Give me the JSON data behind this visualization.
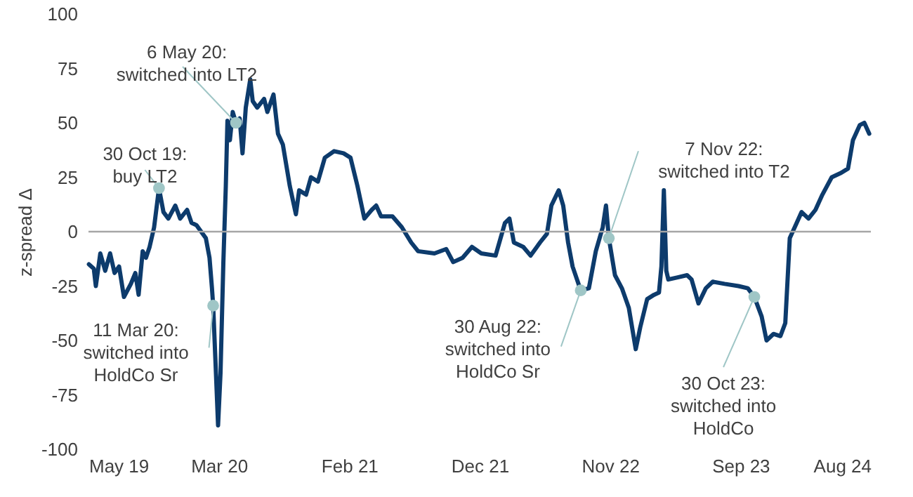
{
  "chart_data": {
    "type": "line",
    "ylabel": "z-spread Δ",
    "line_style": "solid",
    "marker": "none",
    "grid": false,
    "xlim": [
      "2019-05-10",
      "2024-08-11"
    ],
    "xticks": [
      {
        "value": "2019-05-10",
        "label": "May 19"
      },
      {
        "value": "2020-03-25",
        "label": "Mar 20"
      },
      {
        "value": "2021-02-08",
        "label": "Feb 21"
      },
      {
        "value": "2021-12-25",
        "label": "Dec 21"
      },
      {
        "value": "2022-11-10",
        "label": "Nov 22"
      },
      {
        "value": "2023-09-26",
        "label": "Sep 23"
      },
      {
        "value": "2024-08-11",
        "label": "Aug 24"
      }
    ],
    "ylim": [
      -100,
      100
    ],
    "yticks": [
      -100,
      -75,
      -50,
      -25,
      0,
      25,
      50,
      75,
      100
    ],
    "ref_lines": [
      {
        "axis": "y",
        "value": 0,
        "color": "#a6a6a6"
      }
    ],
    "series": [
      {
        "color": "#0d3b6c",
        "x": [
          "2019-05-11",
          "2019-05-23",
          "2019-05-28",
          "2019-06-08",
          "2019-06-20",
          "2019-07-02",
          "2019-07-13",
          "2019-07-24",
          "2019-08-05",
          "2019-08-22",
          "2019-09-02",
          "2019-09-10",
          "2019-09-20",
          "2019-09-28",
          "2019-10-07",
          "2019-10-18",
          "2019-10-30",
          "2019-11-10",
          "2019-11-22",
          "2019-12-09",
          "2019-12-21",
          "2020-01-07",
          "2020-01-18",
          "2020-01-30",
          "2020-02-22",
          "2020-03-02",
          "2020-03-08",
          "2020-03-11",
          "2020-03-23",
          "2020-03-29",
          "2020-04-05",
          "2020-04-11",
          "2020-04-15",
          "2020-04-21",
          "2020-04-28",
          "2020-05-06",
          "2020-05-15",
          "2020-05-22",
          "2020-05-30",
          "2020-06-10",
          "2020-06-16",
          "2020-06-27",
          "2020-07-14",
          "2020-07-22",
          "2020-08-06",
          "2020-08-17",
          "2020-08-29",
          "2020-09-15",
          "2020-09-30",
          "2020-10-08",
          "2020-10-25",
          "2020-11-06",
          "2020-11-23",
          "2020-12-10",
          "2021-01-02",
          "2021-01-25",
          "2021-02-11",
          "2021-02-28",
          "2021-03-17",
          "2021-04-04",
          "2021-04-15",
          "2021-04-27",
          "2021-05-25",
          "2021-06-17",
          "2021-07-10",
          "2021-07-27",
          "2021-09-05",
          "2021-10-04",
          "2021-10-21",
          "2021-11-13",
          "2021-12-06",
          "2021-12-29",
          "2022-02-02",
          "2022-02-25",
          "2022-03-08",
          "2022-03-19",
          "2022-04-11",
          "2022-04-29",
          "2022-05-22",
          "2022-06-08",
          "2022-06-19",
          "2022-07-07",
          "2022-07-18",
          "2022-07-30",
          "2022-08-10",
          "2022-08-30",
          "2022-09-19",
          "2022-10-06",
          "2022-10-23",
          "2022-10-31",
          "2022-11-07",
          "2022-11-22",
          "2022-12-09",
          "2022-12-26",
          "2023-01-12",
          "2023-01-23",
          "2023-02-09",
          "2023-02-26",
          "2023-03-10",
          "2023-03-16",
          "2023-03-22",
          "2023-03-28",
          "2023-04-02",
          "2023-04-25",
          "2023-05-18",
          "2023-05-29",
          "2023-06-15",
          "2023-07-03",
          "2023-07-20",
          "2023-08-18",
          "2023-09-21",
          "2023-10-14",
          "2023-10-30",
          "2023-11-17",
          "2023-11-29",
          "2023-12-16",
          "2024-01-02",
          "2024-01-14",
          "2024-01-25",
          "2024-02-11",
          "2024-02-23",
          "2024-03-11",
          "2024-03-28",
          "2024-04-14",
          "2024-05-07",
          "2024-05-30",
          "2024-06-16",
          "2024-06-28",
          "2024-07-15",
          "2024-07-26",
          "2024-08-07"
        ],
        "values": [
          -15,
          -17,
          -25,
          -10,
          -18,
          -10,
          -19,
          -16,
          -30,
          -24,
          -19,
          -29,
          -9,
          -12,
          -7,
          2,
          20,
          9,
          6,
          12,
          6,
          10,
          4,
          3,
          -3,
          -12,
          -26,
          -34,
          -89,
          -65,
          -14,
          21,
          51,
          42,
          55,
          50,
          52,
          36,
          57,
          70,
          60,
          57,
          61,
          55,
          63,
          45,
          40,
          21,
          8,
          19,
          17,
          25,
          23,
          34,
          37,
          36,
          34,
          21,
          6,
          10,
          12,
          7,
          7,
          2,
          -5,
          -9,
          -10,
          -8,
          -14,
          -12,
          -7,
          -10,
          -11,
          4,
          6,
          -5,
          -7,
          -11,
          -5,
          -1,
          12,
          19,
          12,
          -5,
          -16,
          -27,
          -26,
          -9,
          2,
          12,
          -3,
          -20,
          -26,
          -35,
          -54,
          -44,
          -31,
          -29,
          -28,
          -16,
          19,
          -18,
          -22,
          -21,
          -20,
          -22,
          -33,
          -26,
          -23,
          -24,
          -25,
          -26,
          -30,
          -39,
          -50,
          -47,
          -48,
          -42,
          -3,
          4,
          9,
          6,
          10,
          17,
          25,
          27,
          29,
          42,
          49,
          50,
          45
        ]
      }
    ],
    "annotations": [
      {
        "text": "30 Oct 19:\nbuy LT2",
        "x": "2019-10-30",
        "y": 20
      },
      {
        "text": "11 Mar 20:\nswitched into\nHoldCo Sr",
        "x": "2020-03-11",
        "y": -34
      },
      {
        "text": "6 May 20:\nswitched into LT2",
        "x": "2020-05-06",
        "y": 50
      },
      {
        "text": "30 Aug 22:\nswitched into\nHoldCo Sr",
        "x": "2022-08-30",
        "y": -27
      },
      {
        "text": "7 Nov 22:\nswitched into T2",
        "x": "2022-11-07",
        "y": -3
      },
      {
        "text": "30 Oct 23:\nswitched into\nHoldCo",
        "x": "2023-10-30",
        "y": -30
      }
    ]
  }
}
